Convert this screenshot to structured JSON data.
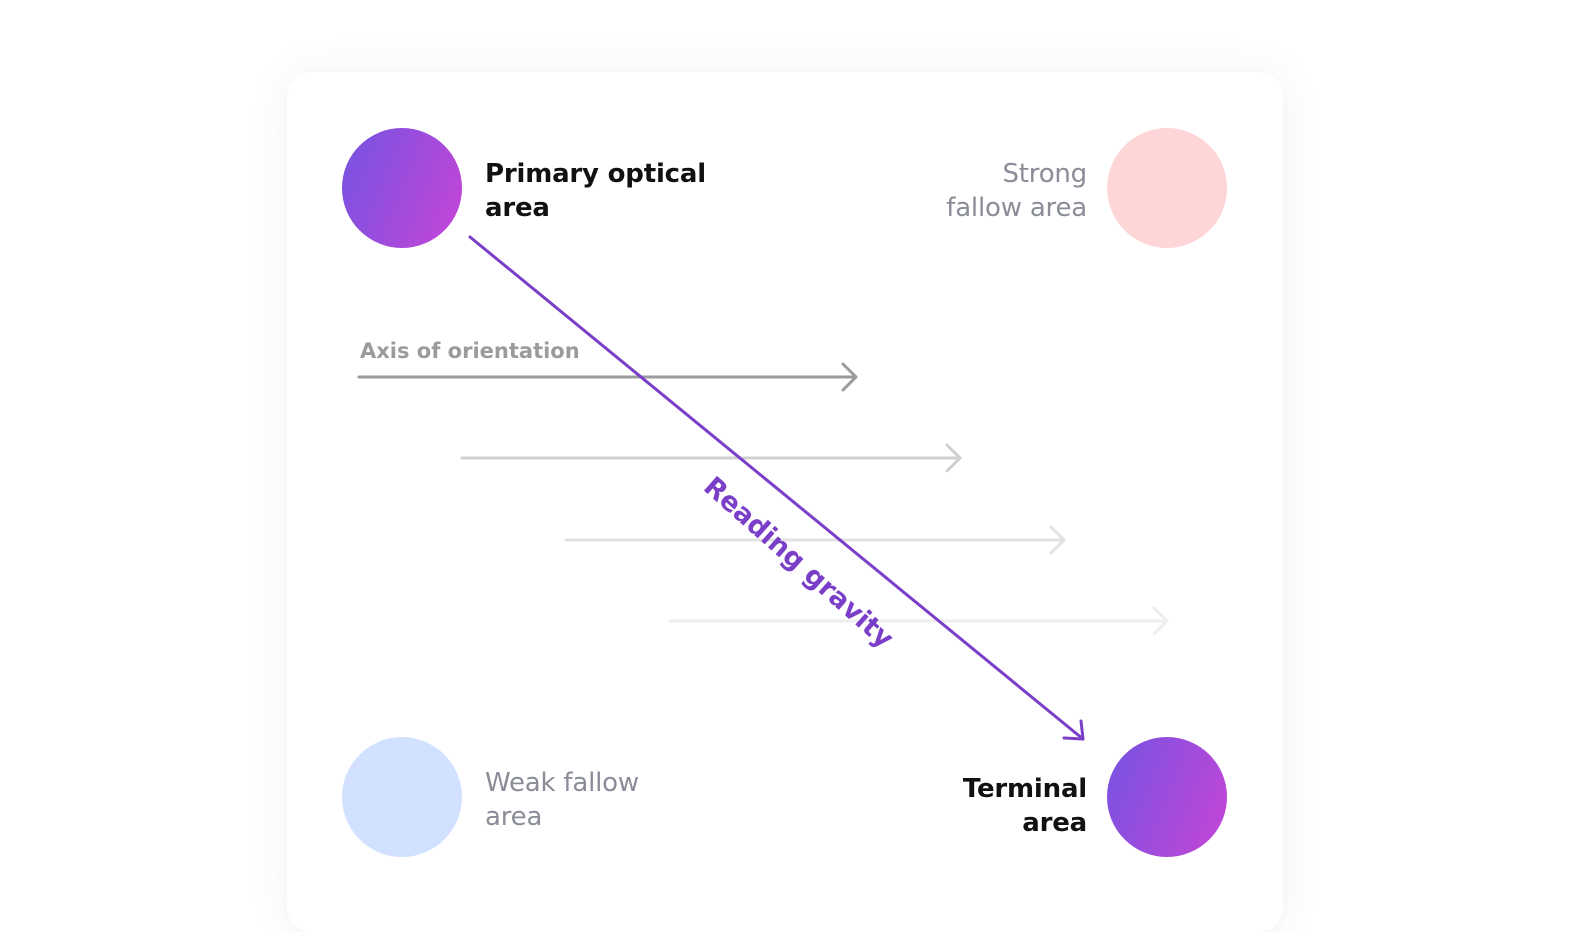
{
  "areas": {
    "primary": {
      "line1": "Primary optical",
      "line2": "area"
    },
    "strong_fallow": {
      "line1": "Strong",
      "line2": "fallow area"
    },
    "weak_fallow": {
      "line1": "Weak fallow",
      "line2": "area"
    },
    "terminal": {
      "line1": "Terminal",
      "line2": "area"
    }
  },
  "axis_label": "Axis of orientation",
  "gravity_label": "Reading gravity",
  "colors": {
    "accent_purple": "#7a3ec8",
    "gradient_start": "#7b52e0",
    "gradient_end": "#c046d8",
    "strong_fallow": "#ffd6d8",
    "weak_fallow": "#d2e1ff",
    "axis_primary": "#9b9b9b"
  }
}
